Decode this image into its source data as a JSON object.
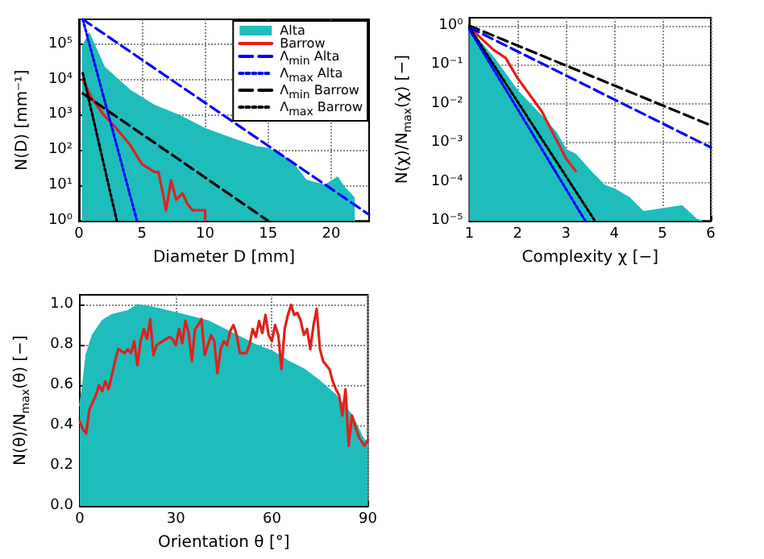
{
  "chart_data": [
    {
      "type": "line",
      "xlabel": "Diameter D [mm]",
      "ylabel": "N(D) [mm⁻¹]",
      "log": "y",
      "grid": true,
      "legend": "top right",
      "marker": "none",
      "xlim": [
        0,
        23
      ],
      "xticks": [
        0,
        5,
        10,
        15,
        20
      ],
      "ylim": [
        1,
        500000
      ],
      "yticks": [
        {
          "value": 1,
          "label": "10⁰"
        },
        {
          "value": 10,
          "label": "10¹"
        },
        {
          "value": 100,
          "label": "10²"
        },
        {
          "value": 1000,
          "label": "10³"
        },
        {
          "value": 10000,
          "label": "10⁴"
        },
        {
          "value": 100000,
          "label": "10⁵"
        }
      ],
      "series": [
        {
          "name": "Alta",
          "type": "area",
          "color": "#1fbcbc",
          "x": [
            0.3,
            0.3,
            0.8,
            2,
            4,
            6,
            8,
            10,
            12,
            14,
            15,
            16,
            17,
            18,
            19.5,
            20.5,
            21,
            21.8,
            21.8
          ],
          "values": [
            1,
            85000,
            200000,
            22000,
            5000,
            1800,
            930,
            400,
            220,
            125,
            110,
            77,
            40,
            14,
            10,
            17,
            9,
            4.5,
            1
          ]
        },
        {
          "name": "Barrow",
          "color": "#e0201c",
          "line_style": "solid",
          "x": [
            0.3,
            1,
            2,
            3,
            4,
            5,
            6,
            6.3,
            6.7,
            6.9,
            7.3,
            7.7,
            8.2,
            8.6,
            9,
            10,
            10
          ],
          "values": [
            10000,
            3000,
            950,
            400,
            150,
            40,
            24,
            24,
            5,
            2,
            14,
            4,
            6,
            3,
            2,
            2,
            1
          ]
        },
        {
          "name": "Λ$_{min}$ Alta",
          "color": "#0000ff",
          "line_style": "dashed",
          "x": [
            0.3,
            23
          ],
          "values": [
            500000,
            1.5
          ]
        },
        {
          "name": "Λ$_{max}$ Alta",
          "color": "#0000ff",
          "line_style": "dotted",
          "x": [
            0.3,
            4.6
          ],
          "values": [
            500000,
            1
          ]
        },
        {
          "name": "Λ$_{min}$ Barrow",
          "color": "#000000",
          "line_style": "dashed",
          "x": [
            0.3,
            15
          ],
          "values": [
            4000,
            1
          ]
        },
        {
          "name": "Λ$_{max}$ Barrow",
          "color": "#000000",
          "line_style": "dotted",
          "x": [
            0.3,
            3
          ],
          "values": [
            15000,
            1
          ]
        }
      ]
    },
    {
      "type": "line",
      "xlabel": "Complexity χ [−]",
      "ylabel": "N(χ)/N$_{max}$(χ) [−]",
      "log": "y",
      "grid": true,
      "marker": "none",
      "xlim": [
        1,
        6
      ],
      "xticks": [
        1,
        2,
        3,
        4,
        5,
        6
      ],
      "ylim": [
        1e-05,
        1.6
      ],
      "yticks": [
        {
          "value": 1e-05,
          "label": "10⁻⁵"
        },
        {
          "value": 0.0001,
          "label": "10⁻⁴"
        },
        {
          "value": 0.001,
          "label": "10⁻³"
        },
        {
          "value": 0.01,
          "label": "10⁻²"
        },
        {
          "value": 0.1,
          "label": "10⁻¹"
        },
        {
          "value": 1,
          "label": "10⁰"
        }
      ],
      "series": [
        {
          "type": "area",
          "color": "#1fbcbc",
          "x": [
            1,
            1.5,
            2,
            2.5,
            2.8,
            3,
            3.2,
            3.5,
            3.8,
            4,
            4.3,
            4.6,
            5,
            5.4,
            5.7,
            5.8
          ],
          "values": [
            0.8,
            0.15,
            0.021,
            0.0047,
            0.0018,
            0.00066,
            0.0005,
            0.00019,
            8e-05,
            6.5e-05,
            4e-05,
            1.7e-05,
            2e-05,
            2.4e-05,
            1.1e-05,
            1e-05
          ]
        },
        {
          "color": "#e0201c",
          "line_style": "solid",
          "x": [
            1,
            1.5,
            1.75,
            2,
            2.5,
            2.75,
            3,
            3.2
          ],
          "values": [
            0.9,
            0.24,
            0.15,
            0.045,
            0.0064,
            0.0016,
            0.0004,
            0.00019
          ]
        },
        {
          "color": "#000000",
          "line_style": "dashed",
          "x": [
            1,
            6
          ],
          "values": [
            1,
            0.0028
          ]
        },
        {
          "color": "#0000ff",
          "line_style": "dashed",
          "x": [
            1,
            6
          ],
          "values": [
            0.9,
            0.00076
          ]
        },
        {
          "color": "#000000",
          "line_style": "dotted",
          "x": [
            1,
            3.6
          ],
          "values": [
            0.9,
            1e-05
          ]
        },
        {
          "color": "#0000ff",
          "line_style": "dotted",
          "x": [
            1,
            3.4
          ],
          "values": [
            0.8,
            1e-05
          ]
        }
      ]
    },
    {
      "type": "line",
      "xlabel": "Orientation θ [°]",
      "ylabel": "N(θ)/N$_{max}$(θ) [−]",
      "grid": true,
      "marker": "none",
      "xlim": [
        0,
        90
      ],
      "xticks": [
        0,
        30,
        60,
        90
      ],
      "ylim": [
        0,
        1.05
      ],
      "yticks": [
        {
          "value": 0,
          "label": "0.0"
        },
        {
          "value": 0.2,
          "label": "0.2"
        },
        {
          "value": 0.4,
          "label": "0.4"
        },
        {
          "value": 0.6,
          "label": "0.6"
        },
        {
          "value": 0.8,
          "label": "0.8"
        },
        {
          "value": 1,
          "label": "1.0"
        }
      ],
      "series": [
        {
          "type": "area",
          "color": "#1fbcbc",
          "x": [
            0,
            1,
            2,
            4,
            7,
            10,
            15,
            18,
            22,
            30,
            40,
            45,
            50,
            55,
            60,
            65,
            70,
            75,
            80,
            85,
            88,
            90
          ],
          "values": [
            0.5,
            0.6,
            0.75,
            0.85,
            0.92,
            0.95,
            0.97,
            1.0,
            0.99,
            0.96,
            0.92,
            0.88,
            0.84,
            0.8,
            0.77,
            0.72,
            0.68,
            0.62,
            0.55,
            0.45,
            0.35,
            0.3
          ]
        },
        {
          "color": "#e0201c",
          "line_style": "solid",
          "x": [
            0,
            1,
            2,
            3,
            5,
            6,
            7,
            8,
            9,
            10,
            11,
            12,
            14,
            15,
            16,
            17,
            18,
            19,
            20,
            21,
            22,
            23,
            24,
            26,
            28,
            29,
            30,
            31,
            32,
            33,
            34,
            35,
            36,
            37,
            38,
            39,
            40,
            41,
            42,
            43,
            44,
            45,
            46,
            47,
            48,
            49,
            50,
            52,
            53,
            54,
            55,
            56,
            57,
            58,
            59,
            60,
            61,
            62,
            63,
            64,
            65,
            66,
            67,
            68,
            69,
            70,
            71,
            72,
            73,
            74,
            75,
            76,
            77,
            78,
            79,
            80,
            81,
            82,
            83,
            84,
            85,
            86,
            87,
            88,
            89,
            90
          ],
          "values": [
            0.42,
            0.38,
            0.36,
            0.48,
            0.55,
            0.6,
            0.57,
            0.62,
            0.58,
            0.65,
            0.72,
            0.78,
            0.76,
            0.78,
            0.76,
            0.82,
            0.7,
            0.82,
            0.88,
            0.83,
            0.93,
            0.75,
            0.8,
            0.82,
            0.84,
            0.83,
            0.8,
            0.88,
            0.81,
            0.92,
            0.86,
            0.72,
            0.88,
            0.9,
            0.93,
            0.75,
            0.8,
            0.85,
            0.82,
            0.66,
            0.78,
            0.82,
            0.8,
            0.87,
            0.9,
            0.85,
            0.76,
            0.76,
            0.8,
            0.88,
            0.84,
            0.92,
            0.86,
            0.95,
            0.85,
            0.82,
            0.9,
            0.85,
            0.68,
            0.88,
            0.95,
            1.0,
            0.95,
            0.96,
            0.92,
            0.85,
            0.88,
            0.78,
            0.9,
            0.98,
            0.78,
            0.72,
            0.7,
            0.68,
            0.62,
            0.58,
            0.55,
            0.45,
            0.58,
            0.3,
            0.45,
            0.4,
            0.35,
            0.32,
            0.3,
            0.33
          ]
        }
      ]
    }
  ]
}
